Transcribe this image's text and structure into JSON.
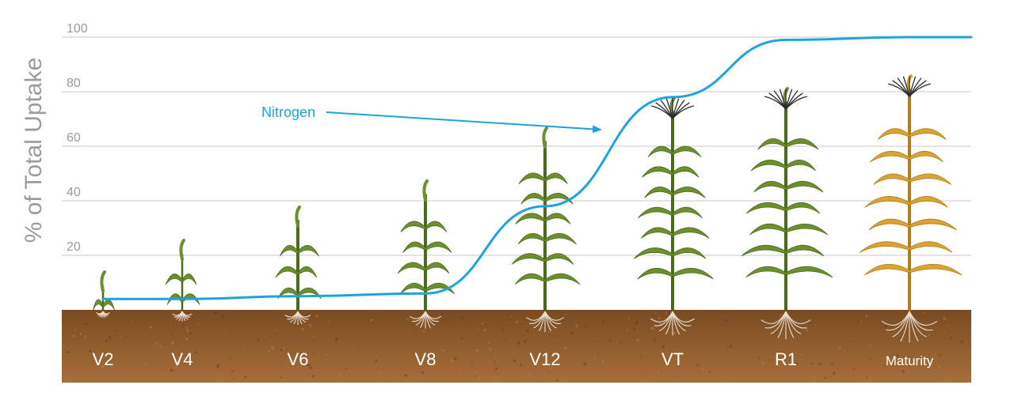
{
  "chart_data": {
    "type": "line",
    "ylabel": "% of Total Uptake",
    "ylim": [
      0,
      100
    ],
    "yticks": [
      "20",
      "40",
      "60",
      "80",
      "100"
    ],
    "grid": true,
    "categories": [
      "V2",
      "V4",
      "V6",
      "V8",
      "V12",
      "VT",
      "R1",
      "Maturity"
    ],
    "series": [
      {
        "name": "Nitrogen",
        "color": "#1fa3dc",
        "x": [
          "V2",
          "V4",
          "V6",
          "V8",
          "V12",
          "VT",
          "R1",
          "Maturity"
        ],
        "values": [
          4,
          4,
          5,
          6,
          38,
          78,
          99,
          100
        ]
      }
    ],
    "annotations": [
      {
        "text": "Nitrogen",
        "points_to": "curve between V12 and VT"
      }
    ]
  },
  "colors": {
    "soil": "#8b5a2b",
    "gridline": "#d4d4d4",
    "plant_green": "#6d8f2d",
    "plant_mature": "#d9a432"
  }
}
